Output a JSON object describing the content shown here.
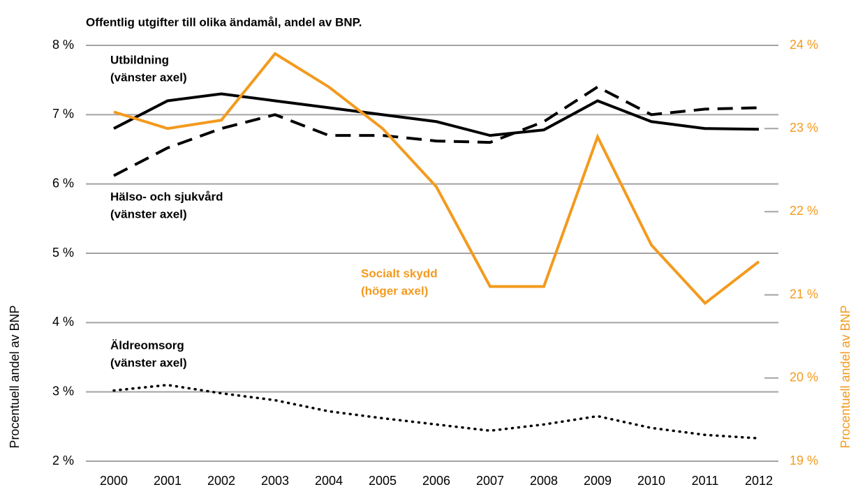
{
  "chart_data": {
    "type": "line",
    "title": "Offentlig utgifter till olika ändamål, andel av BNP.",
    "y_label": "Procentuell andel av BNP",
    "y2_label": "Procentuell andel av BNP",
    "categories": [
      "2000",
      "2001",
      "2002",
      "2003",
      "2004",
      "2005",
      "2006",
      "2007",
      "2008",
      "2009",
      "2010",
      "2011",
      "2012"
    ],
    "ylim": [
      2,
      8
    ],
    "yticks": [
      {
        "value": 2,
        "label": "2 %"
      },
      {
        "value": 3,
        "label": "3 %"
      },
      {
        "value": 4,
        "label": "4 %"
      },
      {
        "value": 5,
        "label": "5 %"
      },
      {
        "value": 6,
        "label": "6 %"
      },
      {
        "value": 7,
        "label": "7 %"
      },
      {
        "value": 8,
        "label": "8 %"
      }
    ],
    "y2lim": [
      19,
      24
    ],
    "y2ticks": [
      {
        "value": 19,
        "label": "19 %"
      },
      {
        "value": 20,
        "label": "20 %"
      },
      {
        "value": 21,
        "label": "21 %"
      },
      {
        "value": 22,
        "label": "22 %"
      },
      {
        "value": 23,
        "label": "23 %"
      },
      {
        "value": 24,
        "label": "24 %"
      }
    ],
    "y2color": "#f39a1e",
    "grid": true,
    "series": [
      {
        "name": "Utbildning",
        "note": "(vänster axel)",
        "color": "#000000",
        "dash": "solid",
        "values": [
          6.8,
          7.2,
          7.3,
          7.2,
          7.1,
          7.0,
          6.9,
          6.7,
          6.78,
          7.2,
          6.9,
          6.8,
          6.79
        ]
      },
      {
        "name": "Hälso- och sjukvård",
        "note": "(vänster axel)",
        "color": "#000000",
        "dash": "dashed",
        "values": [
          6.12,
          6.52,
          6.8,
          7.0,
          6.7,
          6.7,
          6.62,
          6.6,
          6.9,
          7.4,
          7.0,
          7.08,
          7.1
        ]
      },
      {
        "name": "Socialt skydd",
        "note": "(höger axel)",
        "color": "#f39a1e",
        "dash": "solid",
        "axis": "y2",
        "values": [
          23.2,
          23.0,
          23.1,
          23.9,
          23.5,
          23.0,
          22.3,
          21.1,
          21.1,
          22.9,
          21.6,
          20.9,
          21.4
        ]
      },
      {
        "name": "Äldreomsorg",
        "note": "(vänster axel)",
        "color": "#000000",
        "dash": "dotted",
        "values": [
          3.02,
          3.1,
          2.98,
          2.88,
          2.72,
          2.62,
          2.53,
          2.44,
          2.53,
          2.65,
          2.48,
          2.38,
          2.33
        ]
      }
    ]
  }
}
